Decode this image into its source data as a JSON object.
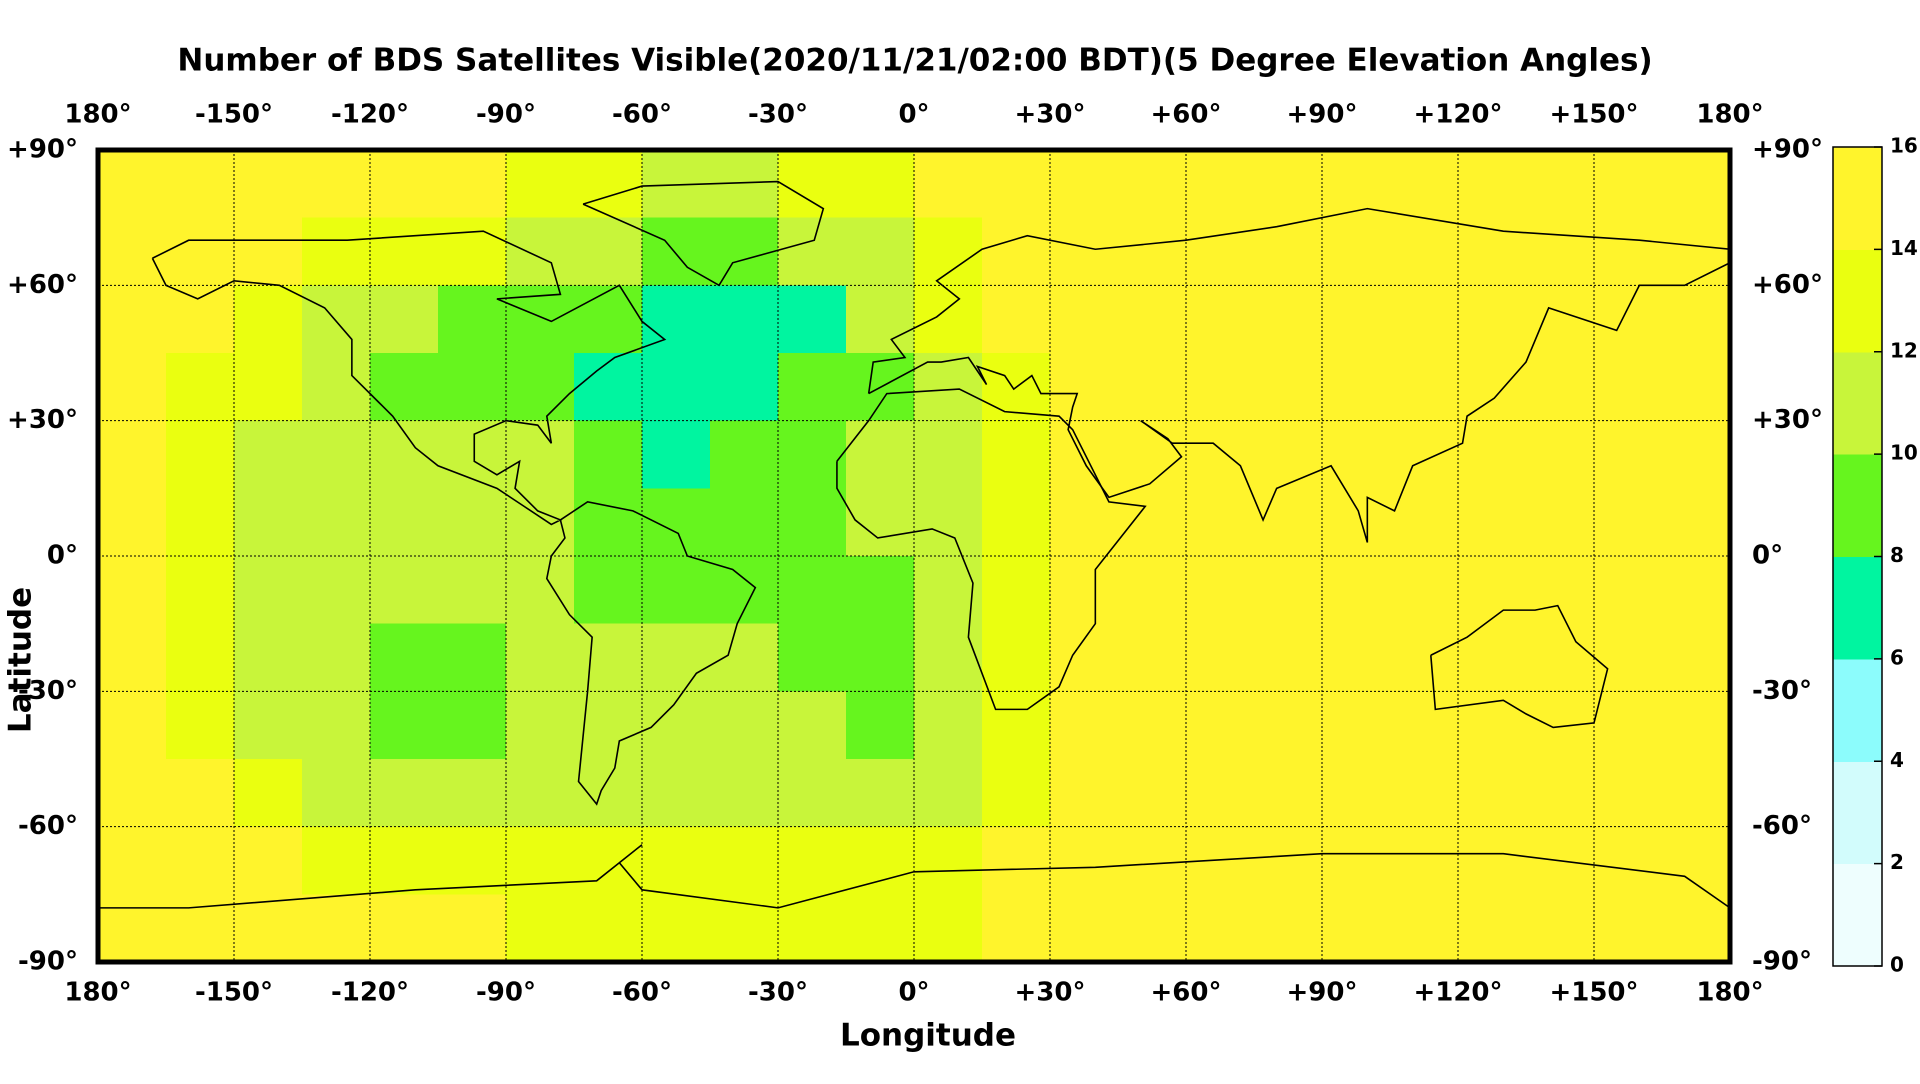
{
  "chart_data": {
    "type": "heatmap",
    "title": "Number of BDS Satellites Visible(2020/11/21/02:00 BDT)(5 Degree Elevation Angles)",
    "xlabel": "Longitude",
    "ylabel": "Latitude",
    "x": [
      -180,
      -165,
      -150,
      -135,
      -120,
      -105,
      -90,
      -75,
      -60,
      -45,
      -30,
      -15,
      0,
      15,
      30,
      45,
      60,
      75,
      90,
      105,
      120,
      135,
      150,
      165,
      180
    ],
    "y": [
      90,
      75,
      60,
      45,
      30,
      15,
      0,
      -15,
      -30,
      -45,
      -60,
      -75,
      -90
    ],
    "z": [
      [
        15,
        15,
        15,
        15,
        15,
        15,
        13,
        13,
        11,
        11,
        13,
        13,
        15,
        15,
        15,
        15,
        15,
        15,
        15,
        15,
        15,
        15,
        15,
        15
      ],
      [
        15,
        15,
        15,
        13,
        13,
        13,
        11,
        11,
        9,
        9,
        11,
        11,
        13,
        15,
        15,
        15,
        15,
        15,
        15,
        15,
        15,
        15,
        15,
        15
      ],
      [
        15,
        15,
        13,
        11,
        11,
        9,
        9,
        9,
        7,
        7,
        7,
        11,
        13,
        15,
        15,
        15,
        15,
        15,
        15,
        15,
        15,
        15,
        15,
        15
      ],
      [
        15,
        13,
        13,
        11,
        9,
        9,
        9,
        7,
        7,
        7,
        9,
        9,
        11,
        13,
        15,
        15,
        15,
        15,
        15,
        15,
        15,
        15,
        15,
        15
      ],
      [
        15,
        13,
        11,
        11,
        11,
        11,
        11,
        9,
        7,
        9,
        9,
        11,
        11,
        13,
        15,
        15,
        15,
        15,
        15,
        15,
        15,
        15,
        15,
        15
      ],
      [
        15,
        13,
        11,
        11,
        11,
        11,
        11,
        9,
        9,
        9,
        9,
        11,
        11,
        13,
        15,
        15,
        15,
        15,
        15,
        15,
        15,
        15,
        15,
        15
      ],
      [
        15,
        13,
        11,
        11,
        11,
        11,
        11,
        9,
        9,
        9,
        9,
        9,
        11,
        13,
        15,
        15,
        15,
        15,
        15,
        15,
        15,
        15,
        15,
        15
      ],
      [
        15,
        13,
        11,
        11,
        9,
        9,
        11,
        11,
        11,
        11,
        9,
        9,
        11,
        13,
        15,
        15,
        15,
        15,
        15,
        15,
        15,
        15,
        15,
        15
      ],
      [
        15,
        13,
        11,
        11,
        9,
        9,
        11,
        11,
        11,
        11,
        11,
        9,
        11,
        13,
        15,
        15,
        15,
        15,
        15,
        15,
        15,
        15,
        15,
        15
      ],
      [
        15,
        15,
        13,
        11,
        11,
        11,
        11,
        11,
        11,
        11,
        11,
        11,
        11,
        13,
        15,
        15,
        15,
        15,
        15,
        15,
        15,
        15,
        15,
        15
      ],
      [
        15,
        15,
        15,
        13,
        13,
        13,
        13,
        13,
        13,
        13,
        13,
        13,
        13,
        15,
        15,
        15,
        15,
        15,
        15,
        15,
        15,
        15,
        15,
        15
      ],
      [
        15,
        15,
        15,
        15,
        15,
        15,
        13,
        13,
        13,
        13,
        13,
        13,
        13,
        15,
        15,
        15,
        15,
        15,
        15,
        15,
        15,
        15,
        15,
        15
      ]
    ],
    "xlim": [
      -180,
      180
    ],
    "ylim": [
      -90,
      90
    ],
    "xticks": [
      {
        "value": -180,
        "label": "180°"
      },
      {
        "value": -150,
        "label": "-150°"
      },
      {
        "value": -120,
        "label": "-120°"
      },
      {
        "value": -90,
        "label": "-90°"
      },
      {
        "value": -60,
        "label": "-60°"
      },
      {
        "value": -30,
        "label": "-30°"
      },
      {
        "value": 0,
        "label": "0°"
      },
      {
        "value": 30,
        "label": "+30°"
      },
      {
        "value": 60,
        "label": "+60°"
      },
      {
        "value": 90,
        "label": "+90°"
      },
      {
        "value": 120,
        "label": "+120°"
      },
      {
        "value": 150,
        "label": "+150°"
      },
      {
        "value": 180,
        "label": "180°"
      }
    ],
    "yticks": [
      {
        "value": 90,
        "label": "+90°"
      },
      {
        "value": 60,
        "label": "+60°"
      },
      {
        "value": 30,
        "label": "+30°"
      },
      {
        "value": 0,
        "label": "0°"
      },
      {
        "value": -30,
        "label": "-30°"
      },
      {
        "value": -60,
        "label": "-60°"
      },
      {
        "value": -90,
        "label": "-90°"
      }
    ],
    "grid": true,
    "colorbar": {
      "ticks": [
        0,
        2,
        4,
        6,
        8,
        10,
        12,
        14,
        16
      ],
      "colors": [
        "#eefefe",
        "#d2fcfc",
        "#8cfcfc",
        "#00f5a0",
        "#66f51e",
        "#c8f53a",
        "#eaff10",
        "#fff42c"
      ]
    }
  }
}
